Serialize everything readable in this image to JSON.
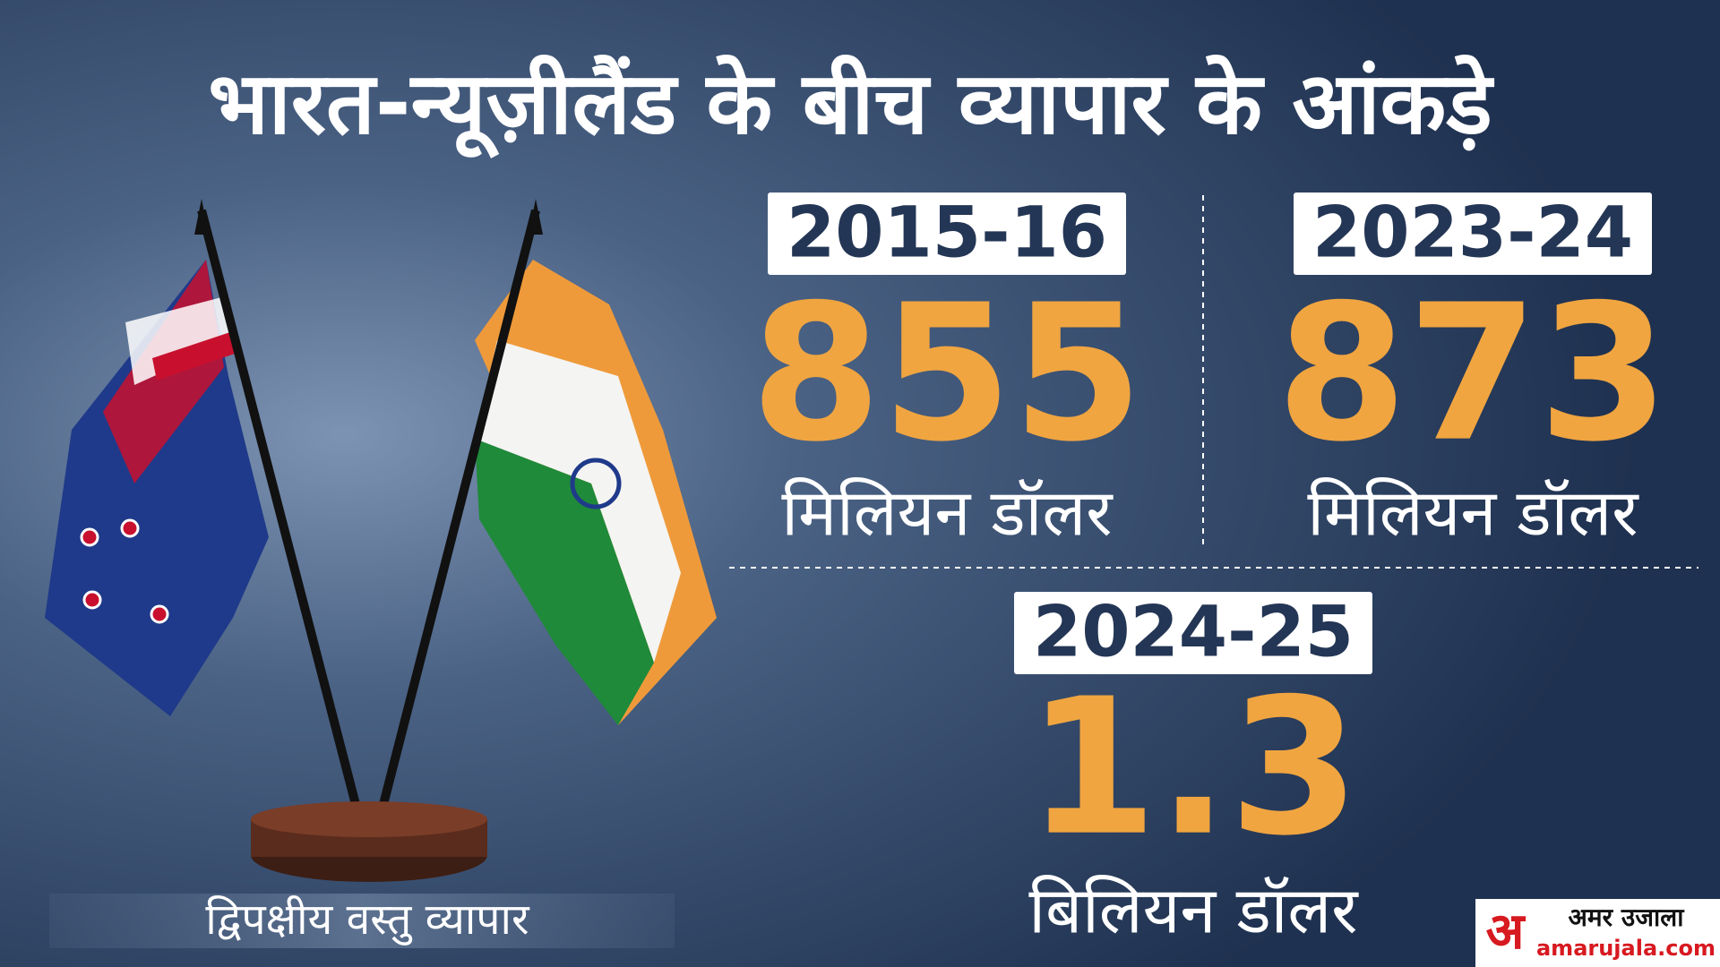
{
  "header": {
    "title": "भारत-न्यूज़ीलैंड के बीच व्यापार के आंकड़े"
  },
  "panels": [
    {
      "period": "2015-16",
      "value": 855,
      "unit": "मिलियन डॉलर"
    },
    {
      "period": "2023-24",
      "value": 873,
      "unit": "मिलियन डॉलर"
    },
    {
      "period": "2024-25",
      "value": 1.3,
      "unit": "बिलियन डॉलर"
    }
  ],
  "caption": "द्विपक्षीय वस्तु व्यापार",
  "logo": {
    "mark": "अ",
    "name": "अमर उजाला",
    "site": "amarujala.com"
  }
}
